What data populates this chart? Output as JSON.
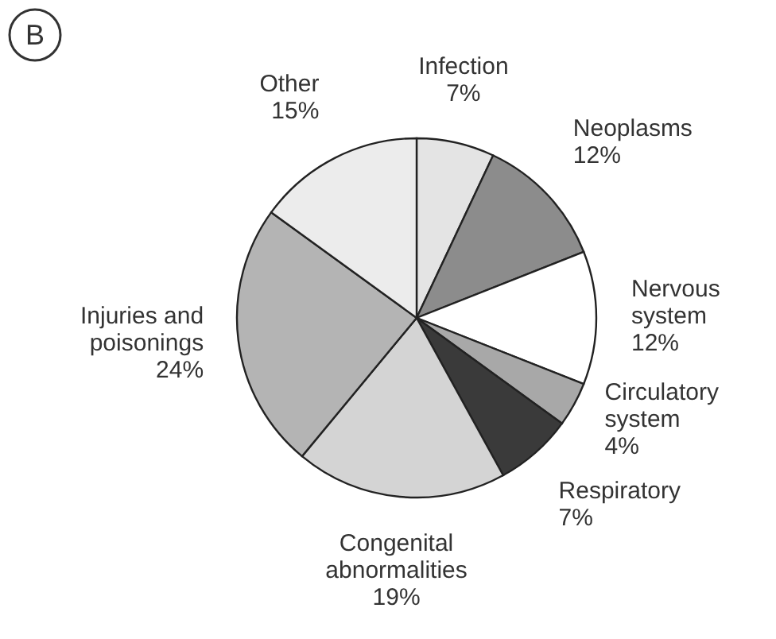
{
  "chart_data": {
    "type": "pie",
    "title": "B",
    "categories": [
      "Infection",
      "Neoplasms",
      "Nervous\nsystem",
      "Circulatory\nsystem",
      "Respiratory",
      "Congenital\nabnormalities",
      "Injuries and\npoisonings",
      "Other"
    ],
    "values": [
      7,
      12,
      12,
      4,
      7,
      19,
      24,
      15
    ],
    "value_labels": [
      "7%",
      "12%",
      "12%",
      "4%",
      "7%",
      "19%",
      "24%",
      "15%"
    ],
    "colors": [
      "#e4e4e4",
      "#8c8c8c",
      "#ffffff",
      "#a8a8a8",
      "#3a3a3a",
      "#d4d4d4",
      "#b4b4b4",
      "#ececec"
    ]
  }
}
